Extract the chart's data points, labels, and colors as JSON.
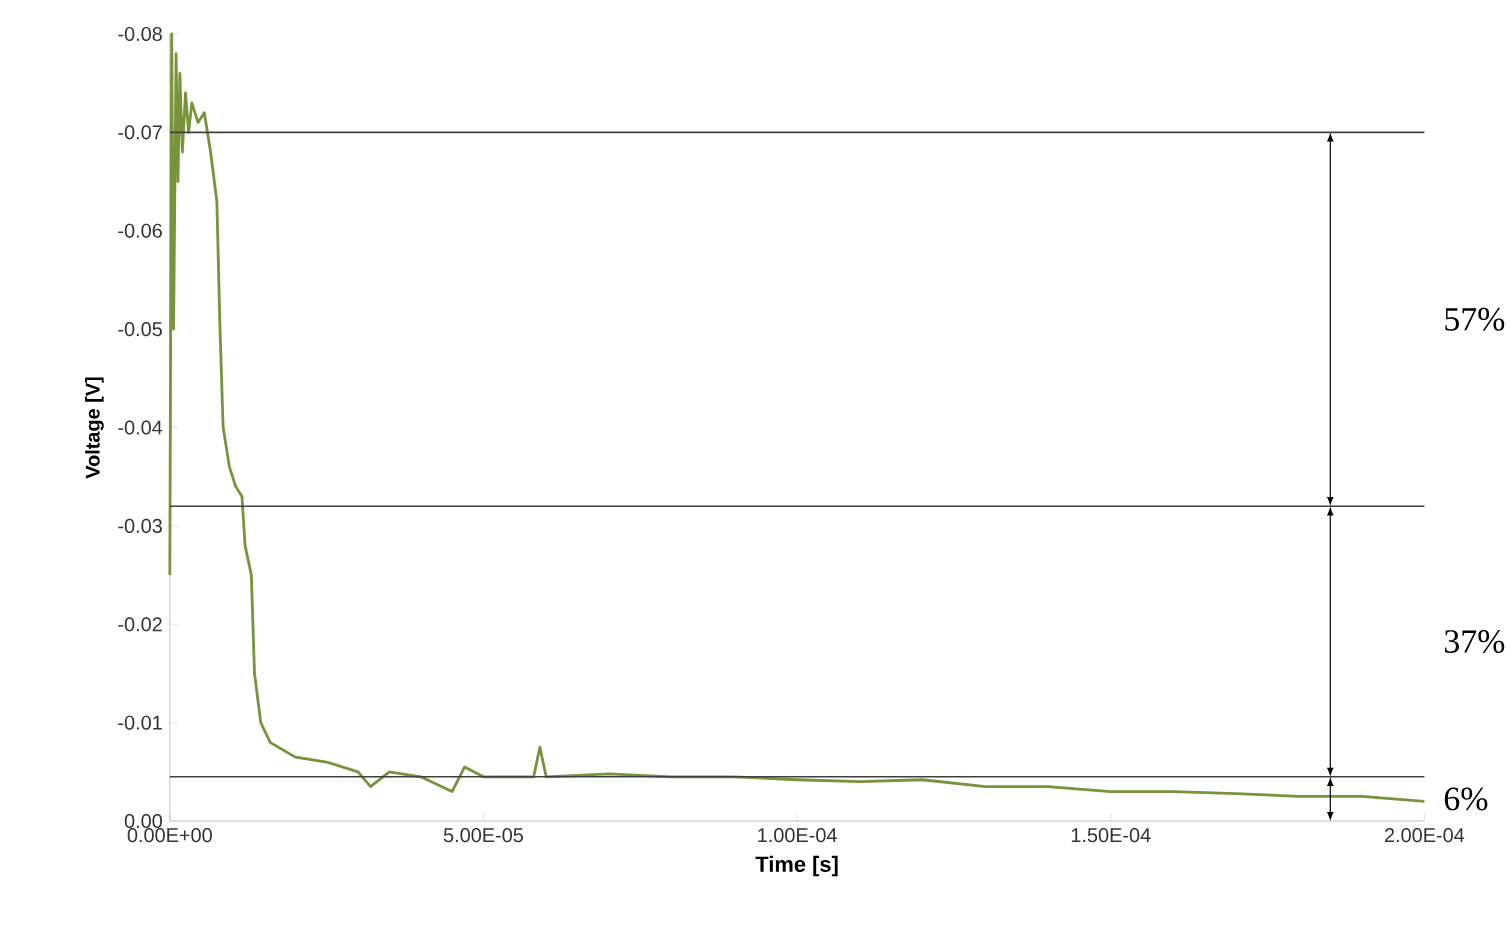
{
  "chart_data": {
    "type": "line",
    "xlabel": "Time [s]",
    "ylabel": "Voltage [V]",
    "x": [
      0,
      3e-07,
      6e-07,
      1e-06,
      1.3e-06,
      1.6e-06,
      2e-06,
      2.5e-06,
      3e-06,
      3.5e-06,
      4.5e-06,
      5.5e-06,
      6.5e-06,
      7.5e-06,
      8e-06,
      8.5e-06,
      9.5e-06,
      1.05e-05,
      1.15e-05,
      1.2e-05,
      1.3e-05,
      1.35e-05,
      1.45e-05,
      1.6e-05,
      2e-05,
      2.5e-05,
      3e-05,
      3.2e-05,
      3.5e-05,
      4e-05,
      4.5e-05,
      4.7e-05,
      5e-05,
      5.8e-05,
      5.9e-05,
      6e-05,
      7e-05,
      8e-05,
      9e-05,
      0.0001,
      0.00011,
      0.00012,
      0.00013,
      0.00014,
      0.00015,
      0.00016,
      0.00017,
      0.00018,
      0.00019,
      0.0002
    ],
    "series": [
      {
        "color": "#77933c",
        "values": [
          -0.025,
          -0.08,
          -0.05,
          -0.078,
          -0.065,
          -0.076,
          -0.068,
          -0.074,
          -0.07,
          -0.073,
          -0.071,
          -0.072,
          -0.068,
          -0.063,
          -0.05,
          -0.04,
          -0.036,
          -0.034,
          -0.033,
          -0.028,
          -0.025,
          -0.015,
          -0.01,
          -0.008,
          -0.0065,
          -0.006,
          -0.005,
          -0.0035,
          -0.005,
          -0.0045,
          -0.003,
          -0.0055,
          -0.0045,
          -0.0045,
          -0.0075,
          -0.0045,
          -0.0048,
          -0.0045,
          -0.0045,
          -0.0042,
          -0.004,
          -0.0042,
          -0.0035,
          -0.0035,
          -0.003,
          -0.003,
          -0.0028,
          -0.0025,
          -0.0025,
          -0.002
        ]
      }
    ],
    "xlim": [
      0,
      0.0002
    ],
    "xticks": [
      {
        "value": 0,
        "label": "0.00E+00"
      },
      {
        "value": 5e-05,
        "label": "5.00E-05"
      },
      {
        "value": 0.0001,
        "label": "1.00E-04"
      },
      {
        "value": 0.00015,
        "label": "1.50E-04"
      },
      {
        "value": 0.0002,
        "label": "2.00E-04"
      }
    ],
    "ylim": [
      0,
      -0.08
    ],
    "yticks": [
      {
        "value": 0,
        "label": "0.00"
      },
      {
        "value": -0.01,
        "label": "-0.01"
      },
      {
        "value": -0.02,
        "label": "-0.02"
      },
      {
        "value": -0.03,
        "label": "-0.03"
      },
      {
        "value": -0.04,
        "label": "-0.04"
      },
      {
        "value": -0.05,
        "label": "-0.05"
      },
      {
        "value": -0.06,
        "label": "-0.06"
      },
      {
        "value": -0.07,
        "label": "-0.07"
      },
      {
        "value": -0.08,
        "label": "-0.08"
      }
    ],
    "ref_lines": [
      {
        "axis": "y",
        "value": -0.07,
        "color": "#404040"
      },
      {
        "axis": "y",
        "value": -0.032,
        "color": "#404040"
      },
      {
        "axis": "y",
        "value": -0.0045,
        "color": "#404040"
      }
    ],
    "annotations": [
      "57%",
      "37%",
      "6%"
    ],
    "grid": false,
    "marker": "none",
    "line_style": "solid"
  }
}
